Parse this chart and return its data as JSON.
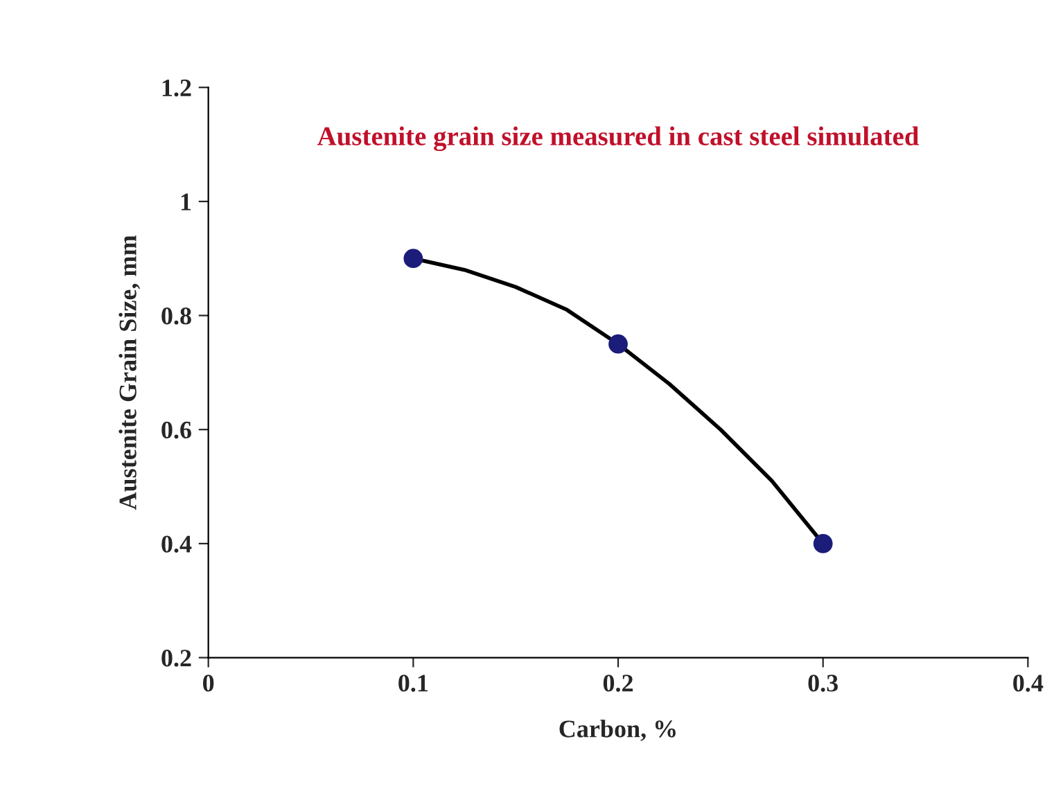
{
  "chart_data": {
    "type": "scatter",
    "xlabel": "Carbon, %",
    "ylabel": "Austenite Grain Size, mm",
    "annotations": [
      "Austenite grain size measured in cast steel simulated"
    ],
    "x": [
      0.1,
      0.2,
      0.3
    ],
    "series": [
      {
        "marker": "circle",
        "color": "#1c1c7a",
        "values": [
          0.9,
          0.75,
          0.4
        ]
      },
      {
        "type": "line",
        "color": "#000000",
        "x": [
          0.1,
          0.125,
          0.15,
          0.175,
          0.2,
          0.225,
          0.25,
          0.275,
          0.3
        ],
        "values": [
          0.9,
          0.88,
          0.85,
          0.81,
          0.75,
          0.68,
          0.6,
          0.51,
          0.4
        ]
      }
    ],
    "line_style": "solid",
    "grid": false,
    "legend": false,
    "xlim": [
      0,
      0.4
    ],
    "xticks": [
      0,
      0.1,
      0.2,
      0.3,
      0.4
    ],
    "ylim": [
      0.2,
      1.2
    ],
    "yticks": [
      0.2,
      0.4,
      0.6,
      0.8,
      1,
      1.2
    ]
  }
}
